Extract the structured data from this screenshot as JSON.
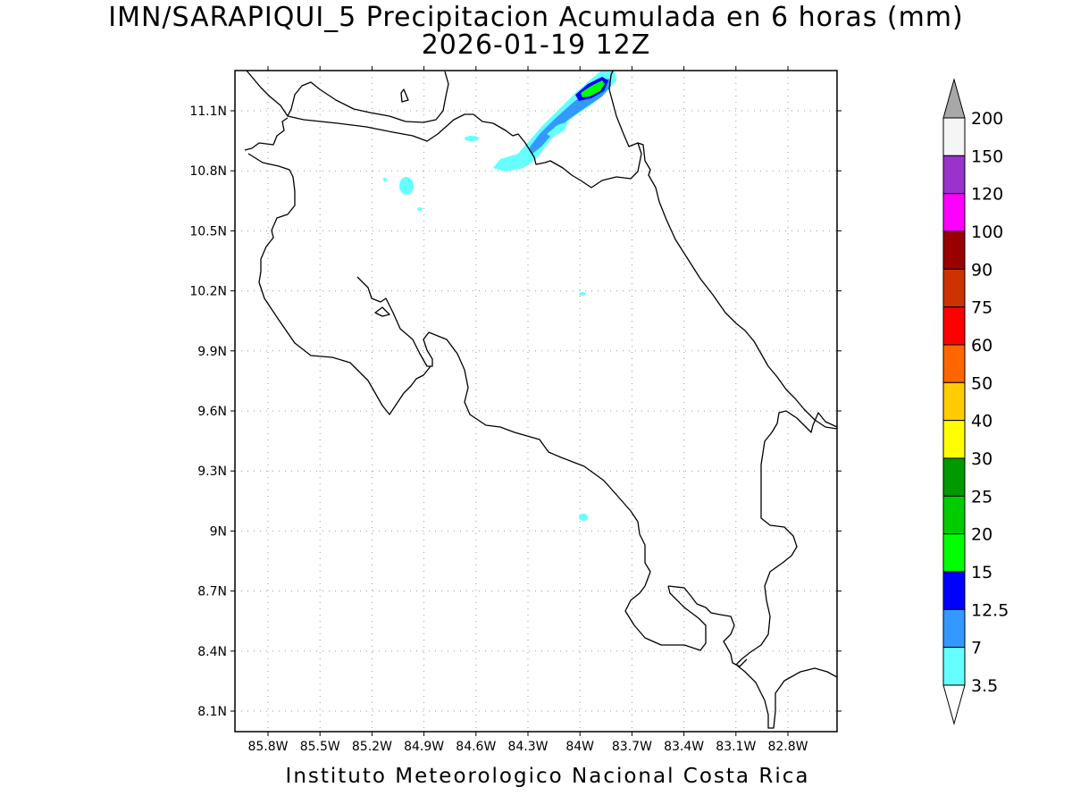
{
  "map": {
    "title_line1": "IMN/SARAPIQUI_5 Precipitacion Acumulada en 6 horas (mm)",
    "title_line2": "2026-01-19 12Z",
    "footer": "Instituto Meteorologico Nacional Costa Rica",
    "lat_labels": [
      "11.1N",
      "10.8N",
      "10.5N",
      "10.2N",
      "9.9N",
      "9.6N",
      "9.3N",
      "9N",
      "8.7N",
      "8.4N",
      "8.1N"
    ],
    "lon_labels": [
      "85.8W",
      "85.5W",
      "85.2W",
      "84.9W",
      "84.6W",
      "84.3W",
      "84W",
      "83.7W",
      "83.4W",
      "83.1W",
      "82.8W"
    ],
    "grid": true
  },
  "colorbar": {
    "labels": [
      "200",
      "150",
      "120",
      "100",
      "90",
      "75",
      "60",
      "50",
      "40",
      "30",
      "25",
      "20",
      "15",
      "12.5",
      "7",
      "3.5"
    ],
    "colors": [
      "#f5f5f5",
      "#9933cc",
      "#ff00ff",
      "#990000",
      "#cc3300",
      "#ff0000",
      "#ff6600",
      "#ffcc00",
      "#ffff00",
      "#009900",
      "#00cc00",
      "#00ff00",
      "#0000ff",
      "#3399ff",
      "#66ffff"
    ],
    "over_color": "#a8a8a8",
    "under_color": "#ffffff"
  }
}
